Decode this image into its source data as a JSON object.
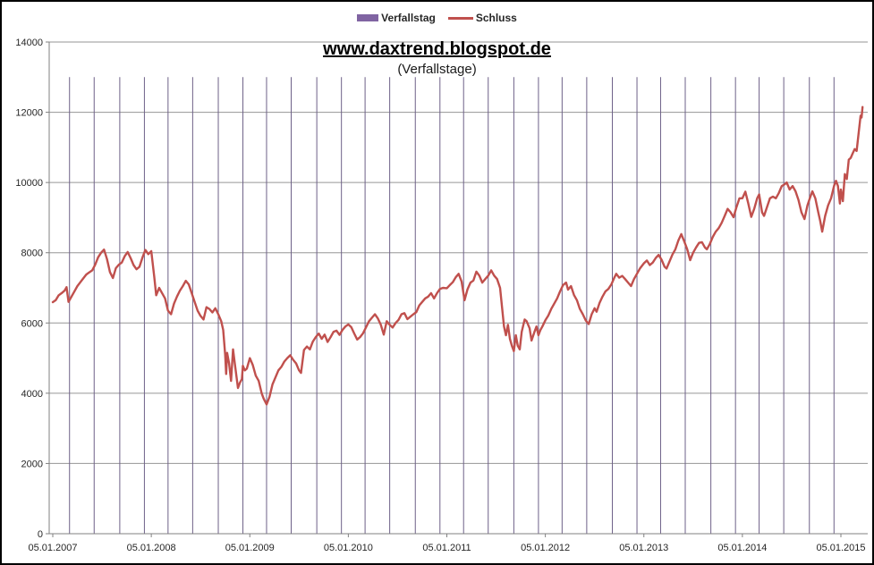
{
  "legend": {
    "items": [
      {
        "label": "Verfallstag",
        "swatch": "bar",
        "color": "#8064A2"
      },
      {
        "label": "Schluss",
        "swatch": "line",
        "color": "#C0504D"
      }
    ]
  },
  "chart_data": {
    "type": "line",
    "title": "www.daxtrend.blogspot.de",
    "subtitle": "(Verfallstage)",
    "xlabel": "",
    "ylabel": "",
    "grid": {
      "horizontal": true,
      "vertical": false
    },
    "legend_position": "top",
    "x_axis": {
      "tick_labels": [
        "05.01.2007",
        "05.01.2008",
        "05.01.2009",
        "05.01.2010",
        "05.01.2011",
        "05.01.2012",
        "05.01.2013",
        "05.01.2014",
        "05.01.2015"
      ],
      "tick_t": [
        0,
        1,
        2,
        3,
        4,
        5,
        6,
        7,
        8
      ],
      "t_max_visible": 8.24
    },
    "y_axis": {
      "min": 0,
      "max": 14000,
      "step": 2000,
      "tick_labels": [
        "0",
        "2000",
        "4000",
        "6000",
        "8000",
        "10000",
        "12000",
        "14000"
      ]
    },
    "colors": {
      "schluss_line": "#C0504D",
      "verfallstag_bar": "#6E6188",
      "verfallstag_legend": "#8064A2",
      "gridline": "#969696",
      "axis": "#808080",
      "tick_text": "#262626"
    },
    "series": [
      {
        "name": "Verfallstag",
        "type": "bar",
        "color": "#8064A2",
        "bar_top_value": 13000,
        "t": [
          0.17,
          0.42,
          0.68,
          0.93,
          1.17,
          1.42,
          1.68,
          1.93,
          2.17,
          2.42,
          2.68,
          2.93,
          3.17,
          3.42,
          3.68,
          3.93,
          4.17,
          4.42,
          4.68,
          4.93,
          5.17,
          5.42,
          5.68,
          5.93,
          6.17,
          6.42,
          6.68,
          6.93,
          7.17,
          7.42,
          7.68,
          7.93
        ]
      },
      {
        "name": "Schluss",
        "type": "line",
        "color": "#C0504D",
        "points": [
          [
            0.0,
            6593
          ],
          [
            0.03,
            6650
          ],
          [
            0.06,
            6790
          ],
          [
            0.09,
            6850
          ],
          [
            0.12,
            6920
          ],
          [
            0.14,
            7020
          ],
          [
            0.16,
            6600
          ],
          [
            0.19,
            6750
          ],
          [
            0.22,
            6900
          ],
          [
            0.25,
            7050
          ],
          [
            0.28,
            7160
          ],
          [
            0.31,
            7270
          ],
          [
            0.34,
            7380
          ],
          [
            0.37,
            7440
          ],
          [
            0.4,
            7500
          ],
          [
            0.43,
            7660
          ],
          [
            0.46,
            7870
          ],
          [
            0.49,
            8000
          ],
          [
            0.52,
            8090
          ],
          [
            0.55,
            7820
          ],
          [
            0.58,
            7450
          ],
          [
            0.61,
            7280
          ],
          [
            0.64,
            7560
          ],
          [
            0.67,
            7660
          ],
          [
            0.7,
            7720
          ],
          [
            0.73,
            7900
          ],
          [
            0.76,
            8020
          ],
          [
            0.79,
            7850
          ],
          [
            0.82,
            7650
          ],
          [
            0.85,
            7530
          ],
          [
            0.88,
            7600
          ],
          [
            0.91,
            7860
          ],
          [
            0.94,
            8080
          ],
          [
            0.97,
            7960
          ],
          [
            1.0,
            8045
          ],
          [
            1.03,
            7320
          ],
          [
            1.05,
            6790
          ],
          [
            1.08,
            7000
          ],
          [
            1.11,
            6850
          ],
          [
            1.14,
            6700
          ],
          [
            1.17,
            6350
          ],
          [
            1.2,
            6250
          ],
          [
            1.23,
            6550
          ],
          [
            1.26,
            6750
          ],
          [
            1.29,
            6920
          ],
          [
            1.32,
            7050
          ],
          [
            1.35,
            7200
          ],
          [
            1.38,
            7100
          ],
          [
            1.41,
            6850
          ],
          [
            1.44,
            6600
          ],
          [
            1.47,
            6350
          ],
          [
            1.5,
            6200
          ],
          [
            1.53,
            6100
          ],
          [
            1.56,
            6450
          ],
          [
            1.59,
            6400
          ],
          [
            1.62,
            6300
          ],
          [
            1.65,
            6420
          ],
          [
            1.68,
            6250
          ],
          [
            1.71,
            6050
          ],
          [
            1.73,
            5800
          ],
          [
            1.75,
            5100
          ],
          [
            1.76,
            4550
          ],
          [
            1.77,
            5150
          ],
          [
            1.79,
            4850
          ],
          [
            1.81,
            4350
          ],
          [
            1.83,
            5250
          ],
          [
            1.85,
            4800
          ],
          [
            1.88,
            4150
          ],
          [
            1.9,
            4300
          ],
          [
            1.92,
            4400
          ],
          [
            1.93,
            4780
          ],
          [
            1.95,
            4650
          ],
          [
            1.97,
            4700
          ],
          [
            2.0,
            5000
          ],
          [
            2.03,
            4800
          ],
          [
            2.06,
            4500
          ],
          [
            2.09,
            4350
          ],
          [
            2.12,
            4000
          ],
          [
            2.14,
            3850
          ],
          [
            2.17,
            3680
          ],
          [
            2.2,
            3900
          ],
          [
            2.23,
            4250
          ],
          [
            2.26,
            4450
          ],
          [
            2.29,
            4650
          ],
          [
            2.32,
            4750
          ],
          [
            2.35,
            4900
          ],
          [
            2.38,
            5000
          ],
          [
            2.41,
            5080
          ],
          [
            2.44,
            4950
          ],
          [
            2.47,
            4850
          ],
          [
            2.5,
            4650
          ],
          [
            2.52,
            4580
          ],
          [
            2.55,
            5230
          ],
          [
            2.58,
            5330
          ],
          [
            2.61,
            5250
          ],
          [
            2.64,
            5470
          ],
          [
            2.67,
            5600
          ],
          [
            2.7,
            5700
          ],
          [
            2.73,
            5550
          ],
          [
            2.76,
            5670
          ],
          [
            2.79,
            5460
          ],
          [
            2.82,
            5600
          ],
          [
            2.85,
            5750
          ],
          [
            2.88,
            5780
          ],
          [
            2.91,
            5660
          ],
          [
            2.94,
            5800
          ],
          [
            2.97,
            5900
          ],
          [
            3.0,
            5960
          ],
          [
            3.03,
            5880
          ],
          [
            3.06,
            5700
          ],
          [
            3.09,
            5530
          ],
          [
            3.12,
            5600
          ],
          [
            3.15,
            5710
          ],
          [
            3.18,
            5880
          ],
          [
            3.21,
            6050
          ],
          [
            3.24,
            6150
          ],
          [
            3.27,
            6250
          ],
          [
            3.3,
            6130
          ],
          [
            3.33,
            5950
          ],
          [
            3.36,
            5670
          ],
          [
            3.39,
            6050
          ],
          [
            3.42,
            5950
          ],
          [
            3.45,
            5870
          ],
          [
            3.48,
            6000
          ],
          [
            3.51,
            6090
          ],
          [
            3.54,
            6250
          ],
          [
            3.57,
            6280
          ],
          [
            3.6,
            6110
          ],
          [
            3.63,
            6180
          ],
          [
            3.66,
            6250
          ],
          [
            3.69,
            6310
          ],
          [
            3.72,
            6500
          ],
          [
            3.75,
            6600
          ],
          [
            3.78,
            6700
          ],
          [
            3.81,
            6750
          ],
          [
            3.84,
            6850
          ],
          [
            3.87,
            6700
          ],
          [
            3.9,
            6850
          ],
          [
            3.93,
            6970
          ],
          [
            3.96,
            7000
          ],
          [
            4.0,
            6990
          ],
          [
            4.03,
            7080
          ],
          [
            4.06,
            7160
          ],
          [
            4.09,
            7300
          ],
          [
            4.12,
            7400
          ],
          [
            4.15,
            7180
          ],
          [
            4.18,
            6650
          ],
          [
            4.21,
            6960
          ],
          [
            4.24,
            7150
          ],
          [
            4.27,
            7210
          ],
          [
            4.3,
            7460
          ],
          [
            4.33,
            7350
          ],
          [
            4.36,
            7150
          ],
          [
            4.39,
            7250
          ],
          [
            4.42,
            7350
          ],
          [
            4.45,
            7500
          ],
          [
            4.48,
            7350
          ],
          [
            4.51,
            7250
          ],
          [
            4.54,
            7000
          ],
          [
            4.56,
            6450
          ],
          [
            4.58,
            5900
          ],
          [
            4.6,
            5650
          ],
          [
            4.62,
            5950
          ],
          [
            4.64,
            5550
          ],
          [
            4.66,
            5350
          ],
          [
            4.68,
            5200
          ],
          [
            4.7,
            5650
          ],
          [
            4.72,
            5350
          ],
          [
            4.74,
            5250
          ],
          [
            4.76,
            5750
          ],
          [
            4.79,
            6100
          ],
          [
            4.81,
            6050
          ],
          [
            4.84,
            5850
          ],
          [
            4.86,
            5500
          ],
          [
            4.89,
            5750
          ],
          [
            4.91,
            5900
          ],
          [
            4.93,
            5650
          ],
          [
            4.95,
            5800
          ],
          [
            4.97,
            5900
          ],
          [
            5.0,
            6075
          ],
          [
            5.03,
            6210
          ],
          [
            5.06,
            6400
          ],
          [
            5.09,
            6550
          ],
          [
            5.12,
            6700
          ],
          [
            5.15,
            6900
          ],
          [
            5.18,
            7080
          ],
          [
            5.21,
            7150
          ],
          [
            5.23,
            6950
          ],
          [
            5.26,
            7050
          ],
          [
            5.29,
            6800
          ],
          [
            5.32,
            6650
          ],
          [
            5.35,
            6400
          ],
          [
            5.38,
            6250
          ],
          [
            5.41,
            6070
          ],
          [
            5.44,
            5970
          ],
          [
            5.47,
            6250
          ],
          [
            5.5,
            6420
          ],
          [
            5.52,
            6320
          ],
          [
            5.55,
            6570
          ],
          [
            5.58,
            6750
          ],
          [
            5.61,
            6900
          ],
          [
            5.64,
            6970
          ],
          [
            5.67,
            7100
          ],
          [
            5.7,
            7290
          ],
          [
            5.72,
            7400
          ],
          [
            5.75,
            7290
          ],
          [
            5.78,
            7340
          ],
          [
            5.81,
            7250
          ],
          [
            5.84,
            7150
          ],
          [
            5.87,
            7050
          ],
          [
            5.9,
            7250
          ],
          [
            5.93,
            7400
          ],
          [
            5.96,
            7550
          ],
          [
            6.0,
            7700
          ],
          [
            6.03,
            7780
          ],
          [
            6.06,
            7650
          ],
          [
            6.09,
            7720
          ],
          [
            6.12,
            7850
          ],
          [
            6.15,
            7940
          ],
          [
            6.18,
            7800
          ],
          [
            6.21,
            7600
          ],
          [
            6.23,
            7550
          ],
          [
            6.26,
            7750
          ],
          [
            6.29,
            7950
          ],
          [
            6.32,
            8100
          ],
          [
            6.35,
            8350
          ],
          [
            6.38,
            8530
          ],
          [
            6.41,
            8320
          ],
          [
            6.44,
            8100
          ],
          [
            6.47,
            7790
          ],
          [
            6.5,
            8000
          ],
          [
            6.53,
            8150
          ],
          [
            6.56,
            8280
          ],
          [
            6.59,
            8300
          ],
          [
            6.62,
            8150
          ],
          [
            6.64,
            8100
          ],
          [
            6.67,
            8250
          ],
          [
            6.7,
            8450
          ],
          [
            6.73,
            8600
          ],
          [
            6.76,
            8700
          ],
          [
            6.79,
            8850
          ],
          [
            6.82,
            9050
          ],
          [
            6.85,
            9250
          ],
          [
            6.88,
            9150
          ],
          [
            6.91,
            9010
          ],
          [
            6.94,
            9300
          ],
          [
            6.97,
            9550
          ],
          [
            7.0,
            9550
          ],
          [
            7.03,
            9740
          ],
          [
            7.06,
            9400
          ],
          [
            7.09,
            9020
          ],
          [
            7.12,
            9250
          ],
          [
            7.15,
            9550
          ],
          [
            7.17,
            9660
          ],
          [
            7.2,
            9150
          ],
          [
            7.22,
            9050
          ],
          [
            7.25,
            9300
          ],
          [
            7.28,
            9550
          ],
          [
            7.31,
            9600
          ],
          [
            7.34,
            9550
          ],
          [
            7.37,
            9700
          ],
          [
            7.4,
            9900
          ],
          [
            7.43,
            9950
          ],
          [
            7.45,
            10000
          ],
          [
            7.48,
            9800
          ],
          [
            7.51,
            9900
          ],
          [
            7.54,
            9750
          ],
          [
            7.57,
            9500
          ],
          [
            7.6,
            9150
          ],
          [
            7.63,
            8960
          ],
          [
            7.66,
            9350
          ],
          [
            7.69,
            9600
          ],
          [
            7.71,
            9750
          ],
          [
            7.74,
            9550
          ],
          [
            7.77,
            9150
          ],
          [
            7.79,
            8900
          ],
          [
            7.81,
            8600
          ],
          [
            7.84,
            9050
          ],
          [
            7.87,
            9350
          ],
          [
            7.9,
            9550
          ],
          [
            7.93,
            9900
          ],
          [
            7.95,
            10050
          ],
          [
            7.97,
            9900
          ],
          [
            7.99,
            9400
          ],
          [
            8.0,
            9800
          ],
          [
            8.02,
            9470
          ],
          [
            8.04,
            10240
          ],
          [
            8.06,
            10100
          ],
          [
            8.08,
            10650
          ],
          [
            8.1,
            10700
          ],
          [
            8.12,
            10830
          ],
          [
            8.14,
            10950
          ],
          [
            8.16,
            10900
          ],
          [
            8.18,
            11400
          ],
          [
            8.2,
            11900
          ],
          [
            8.21,
            11850
          ],
          [
            8.22,
            12150
          ]
        ]
      }
    ]
  }
}
